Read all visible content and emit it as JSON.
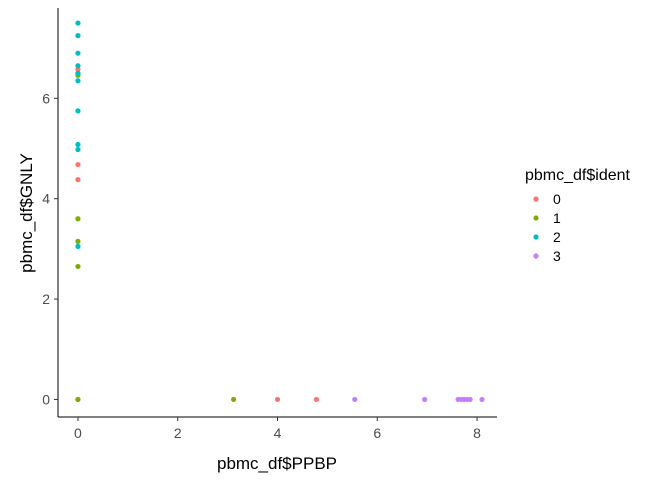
{
  "chart_data": {
    "type": "scatter",
    "xlabel": "pbmc_df$PPBP",
    "ylabel": "pbmc_df$GNLY",
    "xlim": [
      -0.4,
      8.4
    ],
    "ylim": [
      -0.35,
      7.8
    ],
    "x_ticks": [
      0,
      2,
      4,
      6,
      8
    ],
    "y_ticks": [
      0,
      2,
      4,
      6
    ],
    "grid": false,
    "legend": {
      "title": "pbmc_df$ident",
      "position": "right"
    },
    "series": [
      {
        "name": "0",
        "color": "#F8766D",
        "points": [
          [
            0,
            6.58
          ],
          [
            0,
            6.5
          ],
          [
            0,
            4.68
          ],
          [
            0,
            4.38
          ],
          [
            0,
            0
          ],
          [
            4.0,
            0
          ],
          [
            4.78,
            0
          ]
        ]
      },
      {
        "name": "1",
        "color": "#7CAE00",
        "points": [
          [
            0,
            6.46
          ],
          [
            0,
            3.6
          ],
          [
            0,
            3.15
          ],
          [
            0,
            2.65
          ],
          [
            0,
            0
          ],
          [
            3.12,
            0
          ]
        ]
      },
      {
        "name": "2",
        "color": "#00BFC4",
        "points": [
          [
            0,
            7.5
          ],
          [
            0,
            7.25
          ],
          [
            0,
            6.9
          ],
          [
            0,
            6.65
          ],
          [
            0,
            6.5
          ],
          [
            0,
            6.35
          ],
          [
            0,
            5.75
          ],
          [
            0,
            5.08
          ],
          [
            0,
            4.98
          ],
          [
            0,
            3.05
          ]
        ]
      },
      {
        "name": "3",
        "color": "#C77CFF",
        "points": [
          [
            5.55,
            0
          ],
          [
            6.95,
            0
          ],
          [
            7.62,
            0
          ],
          [
            7.68,
            0
          ],
          [
            7.74,
            0
          ],
          [
            7.8,
            0
          ],
          [
            7.86,
            0
          ],
          [
            8.1,
            0
          ]
        ]
      }
    ]
  }
}
